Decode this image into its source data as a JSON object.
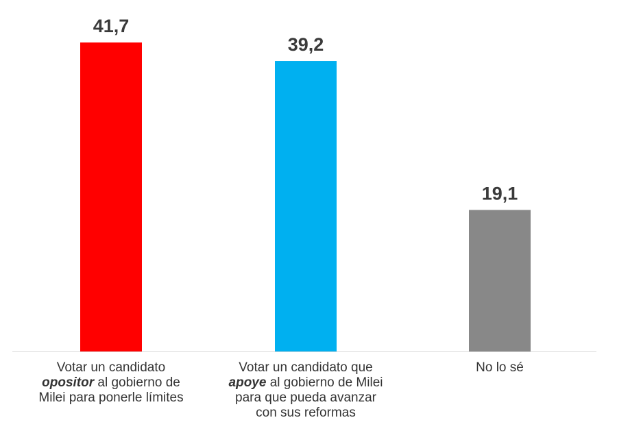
{
  "chart_data": {
    "type": "bar",
    "categories": [
      [
        [
          "Votar un candidato"
        ],
        [
          {
            "text": "opositor",
            "emphasis": true
          },
          " al gobierno de"
        ],
        [
          "Milei para ponerle límites"
        ]
      ],
      [
        [
          "Votar un candidato que"
        ],
        [
          {
            "text": "apoye",
            "emphasis": true
          },
          " al gobierno de Milei"
        ],
        [
          "para que pueda avanzar"
        ],
        [
          "con sus reformas"
        ]
      ],
      [
        [
          "No lo sé"
        ]
      ]
    ],
    "values": [
      41.7,
      39.2,
      19.1
    ],
    "value_labels": [
      "41,7",
      "39,2",
      "19,1"
    ],
    "colors": [
      "#ff0000",
      "#00b0f0",
      "#888888"
    ],
    "grid": false
  }
}
